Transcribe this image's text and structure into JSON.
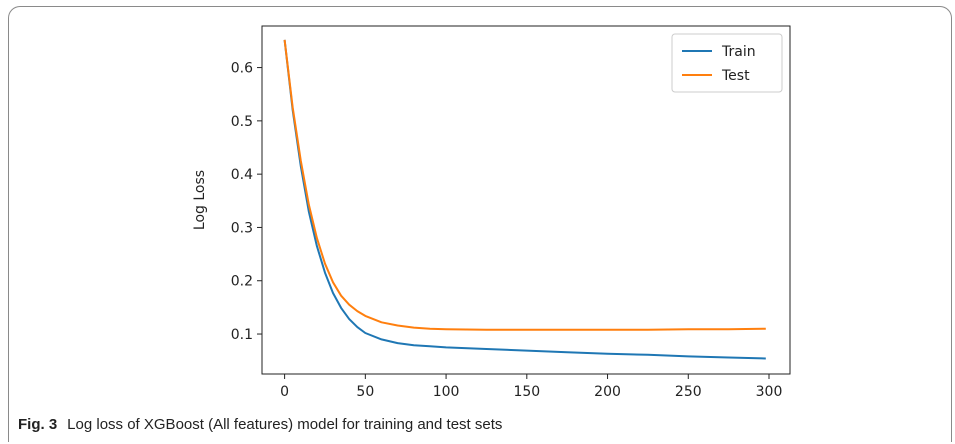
{
  "caption": {
    "label": "Fig. 3",
    "text": "Log loss of XGBoost (All features) model for training and test sets"
  },
  "chart_data": {
    "type": "line",
    "title": "",
    "xlabel": "",
    "ylabel": "Log Loss",
    "xlim": [
      -14,
      313
    ],
    "ylim": [
      0.025,
      0.678
    ],
    "xticks": [
      0,
      50,
      100,
      150,
      200,
      250,
      300
    ],
    "yticks": [
      0.1,
      0.2,
      0.3,
      0.4,
      0.5,
      0.6
    ],
    "legend": "top-right",
    "grid": false,
    "series": [
      {
        "name": "Train",
        "color": "#1f77b4",
        "x": [
          0,
          5,
          10,
          15,
          20,
          25,
          30,
          35,
          40,
          45,
          50,
          60,
          70,
          80,
          90,
          100,
          125,
          150,
          175,
          200,
          225,
          250,
          275,
          298
        ],
        "y": [
          0.652,
          0.52,
          0.415,
          0.33,
          0.265,
          0.215,
          0.177,
          0.149,
          0.128,
          0.113,
          0.102,
          0.09,
          0.083,
          0.079,
          0.077,
          0.075,
          0.072,
          0.069,
          0.066,
          0.063,
          0.061,
          0.058,
          0.056,
          0.054
        ]
      },
      {
        "name": "Test",
        "color": "#ff7f0e",
        "x": [
          0,
          5,
          10,
          15,
          20,
          25,
          30,
          35,
          40,
          45,
          50,
          60,
          70,
          80,
          90,
          100,
          125,
          150,
          175,
          200,
          225,
          250,
          275,
          298
        ],
        "y": [
          0.652,
          0.525,
          0.425,
          0.343,
          0.28,
          0.232,
          0.197,
          0.172,
          0.155,
          0.143,
          0.134,
          0.122,
          0.116,
          0.112,
          0.11,
          0.109,
          0.108,
          0.108,
          0.108,
          0.108,
          0.108,
          0.109,
          0.109,
          0.11
        ]
      }
    ]
  }
}
